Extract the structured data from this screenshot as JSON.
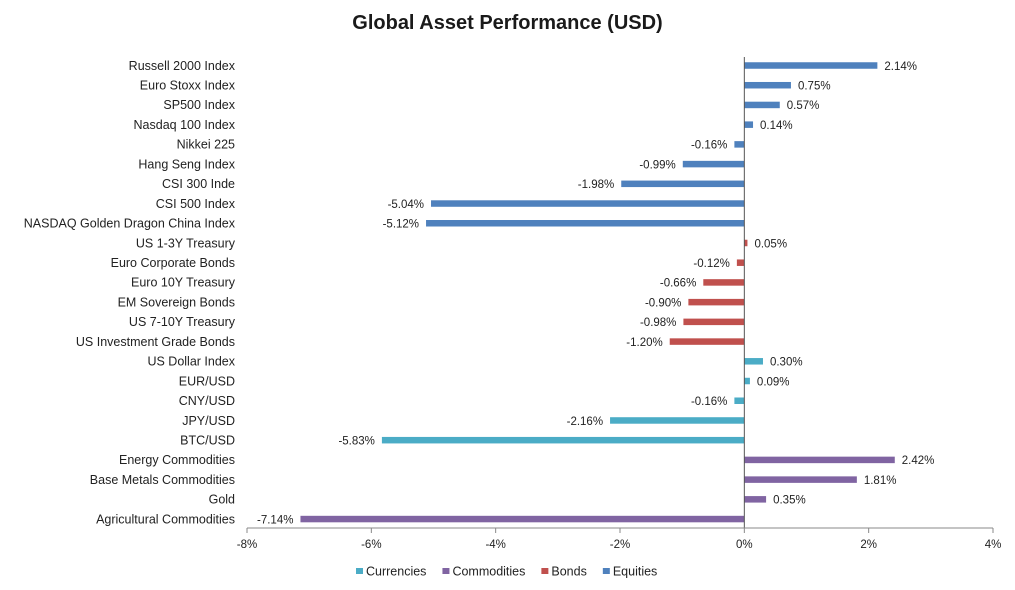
{
  "chart_data": {
    "type": "bar",
    "orientation": "horizontal",
    "title": "Global Asset Performance (USD)",
    "xlabel": "",
    "ylabel": "",
    "xlim": [
      -8,
      4
    ],
    "x_ticks": [
      -8,
      -6,
      -4,
      -2,
      0,
      2,
      4
    ],
    "x_tick_labels": [
      "-8%",
      "-6%",
      "-4%",
      "-2%",
      "0%",
      "2%",
      "4%"
    ],
    "grid": false,
    "legend_position": "bottom",
    "groups": [
      {
        "name": "Currencies",
        "color": "#4BACC6"
      },
      {
        "name": "Commodities",
        "color": "#8064A2"
      },
      {
        "name": "Bonds",
        "color": "#C0504D"
      },
      {
        "name": "Equities",
        "color": "#4F81BD"
      }
    ],
    "bars": [
      {
        "category": "Russell 2000 Index",
        "value": 2.14,
        "label": "2.14%",
        "group": "Equities"
      },
      {
        "category": "Euro Stoxx Index",
        "value": 0.75,
        "label": "0.75%",
        "group": "Equities"
      },
      {
        "category": "SP500 Index",
        "value": 0.57,
        "label": "0.57%",
        "group": "Equities"
      },
      {
        "category": "Nasdaq 100 Index",
        "value": 0.14,
        "label": "0.14%",
        "group": "Equities"
      },
      {
        "category": "Nikkei 225",
        "value": -0.16,
        "label": "-0.16%",
        "group": "Equities"
      },
      {
        "category": "Hang Seng Index",
        "value": -0.99,
        "label": "-0.99%",
        "group": "Equities"
      },
      {
        "category": "CSI 300 Inde",
        "value": -1.98,
        "label": "-1.98%",
        "group": "Equities"
      },
      {
        "category": "CSI 500 Index",
        "value": -5.04,
        "label": "-5.04%",
        "group": "Equities"
      },
      {
        "category": "NASDAQ Golden Dragon China Index",
        "value": -5.12,
        "label": "-5.12%",
        "group": "Equities"
      },
      {
        "category": "US 1-3Y Treasury",
        "value": 0.05,
        "label": "0.05%",
        "group": "Bonds"
      },
      {
        "category": "Euro Corporate Bonds",
        "value": -0.12,
        "label": "-0.12%",
        "group": "Bonds"
      },
      {
        "category": "Euro 10Y Treasury",
        "value": -0.66,
        "label": "-0.66%",
        "group": "Bonds"
      },
      {
        "category": "EM Sovereign Bonds",
        "value": -0.9,
        "label": "-0.90%",
        "group": "Bonds"
      },
      {
        "category": "US 7-10Y Treasury",
        "value": -0.98,
        "label": "-0.98%",
        "group": "Bonds"
      },
      {
        "category": "US Investment Grade Bonds",
        "value": -1.2,
        "label": "-1.20%",
        "group": "Bonds"
      },
      {
        "category": "US Dollar Index",
        "value": 0.3,
        "label": "0.30%",
        "group": "Currencies"
      },
      {
        "category": "EUR/USD",
        "value": 0.09,
        "label": "0.09%",
        "group": "Currencies"
      },
      {
        "category": "CNY/USD",
        "value": -0.16,
        "label": "-0.16%",
        "group": "Currencies"
      },
      {
        "category": "JPY/USD",
        "value": -2.16,
        "label": "-2.16%",
        "group": "Currencies"
      },
      {
        "category": "BTC/USD",
        "value": -5.83,
        "label": "-5.83%",
        "group": "Currencies"
      },
      {
        "category": "Energy Commodities",
        "value": 2.42,
        "label": "2.42%",
        "group": "Commodities"
      },
      {
        "category": "Base Metals Commodities",
        "value": 1.81,
        "label": "1.81%",
        "group": "Commodities"
      },
      {
        "category": "Gold",
        "value": 0.35,
        "label": "0.35%",
        "group": "Commodities"
      },
      {
        "category": "Agricultural Commodities",
        "value": -7.14,
        "label": "-7.14%",
        "group": "Commodities"
      }
    ]
  }
}
